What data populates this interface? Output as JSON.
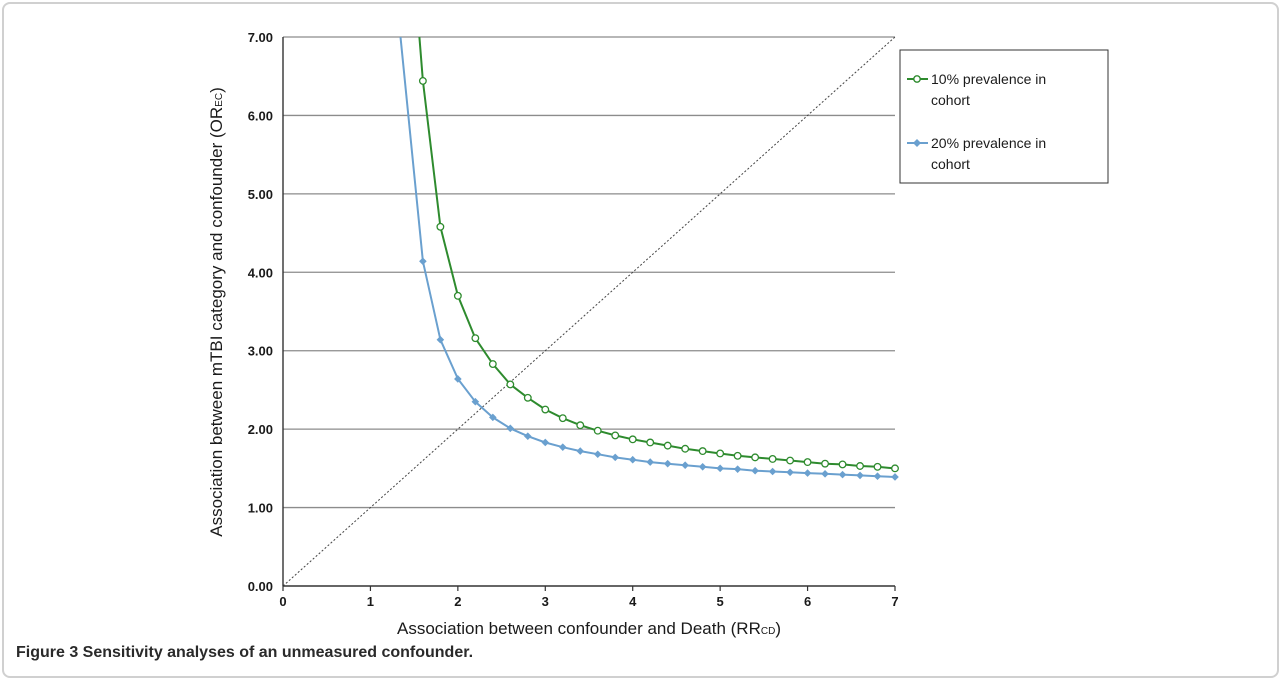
{
  "caption": "Figure 3 Sensitivity analyses of an unmeasured confounder.",
  "chart_data": {
    "type": "line",
    "title": "",
    "xlabel": "Association between confounder and Death (RRcd)",
    "xlabel_main": "Association between confounder and Death (RR",
    "xlabel_sub": "CD",
    "xlabel_end": ")",
    "ylabel": "Association between mTBI category and confounder (ORec)",
    "ylabel_main": "Association between mTBI category and confounder (OR",
    "ylabel_sub": "EC",
    "ylabel_end": ")",
    "xlim": [
      0,
      7
    ],
    "ylim": [
      0,
      7
    ],
    "x_ticks": [
      "0",
      "1",
      "2",
      "3",
      "4",
      "5",
      "6",
      "7"
    ],
    "y_ticks": [
      "0.00",
      "1.00",
      "2.00",
      "3.00",
      "4.00",
      "5.00",
      "6.00",
      "7.00"
    ],
    "grid": "horizontal",
    "legend_position": "top-right",
    "reference_line": {
      "style": "dotted",
      "x": [
        0,
        7
      ],
      "y": [
        0,
        7
      ]
    },
    "series": [
      {
        "name": "10% prevalence in cohort",
        "color": "#2e8b2e",
        "marker": "open-circle",
        "x": [
          1.6,
          1.8,
          2.0,
          2.2,
          2.4,
          2.6,
          2.8,
          3.0,
          3.2,
          3.4,
          3.6,
          3.8,
          4.0,
          4.2,
          4.4,
          4.6,
          4.8,
          5.0,
          5.2,
          5.4,
          5.6,
          5.8,
          6.0,
          6.2,
          6.4,
          6.6,
          6.8,
          7.0
        ],
        "y": [
          6.44,
          4.58,
          3.7,
          3.16,
          2.83,
          2.57,
          2.4,
          2.25,
          2.14,
          2.05,
          1.98,
          1.92,
          1.87,
          1.83,
          1.79,
          1.75,
          1.72,
          1.69,
          1.66,
          1.64,
          1.62,
          1.6,
          1.58,
          1.56,
          1.55,
          1.53,
          1.52,
          1.5
        ]
      },
      {
        "name": "20% prevalence in cohort",
        "color": "#6aa0cf",
        "marker": "diamond",
        "x": [
          1.6,
          1.8,
          2.0,
          2.2,
          2.4,
          2.6,
          2.8,
          3.0,
          3.2,
          3.4,
          3.6,
          3.8,
          4.0,
          4.2,
          4.4,
          4.6,
          4.8,
          5.0,
          5.2,
          5.4,
          5.6,
          5.8,
          6.0,
          6.2,
          6.4,
          6.6,
          6.8,
          7.0
        ],
        "y": [
          4.14,
          3.14,
          2.64,
          2.35,
          2.15,
          2.01,
          1.91,
          1.83,
          1.77,
          1.72,
          1.68,
          1.64,
          1.61,
          1.58,
          1.56,
          1.54,
          1.52,
          1.5,
          1.49,
          1.47,
          1.46,
          1.45,
          1.44,
          1.43,
          1.42,
          1.41,
          1.4,
          1.39
        ]
      }
    ]
  }
}
